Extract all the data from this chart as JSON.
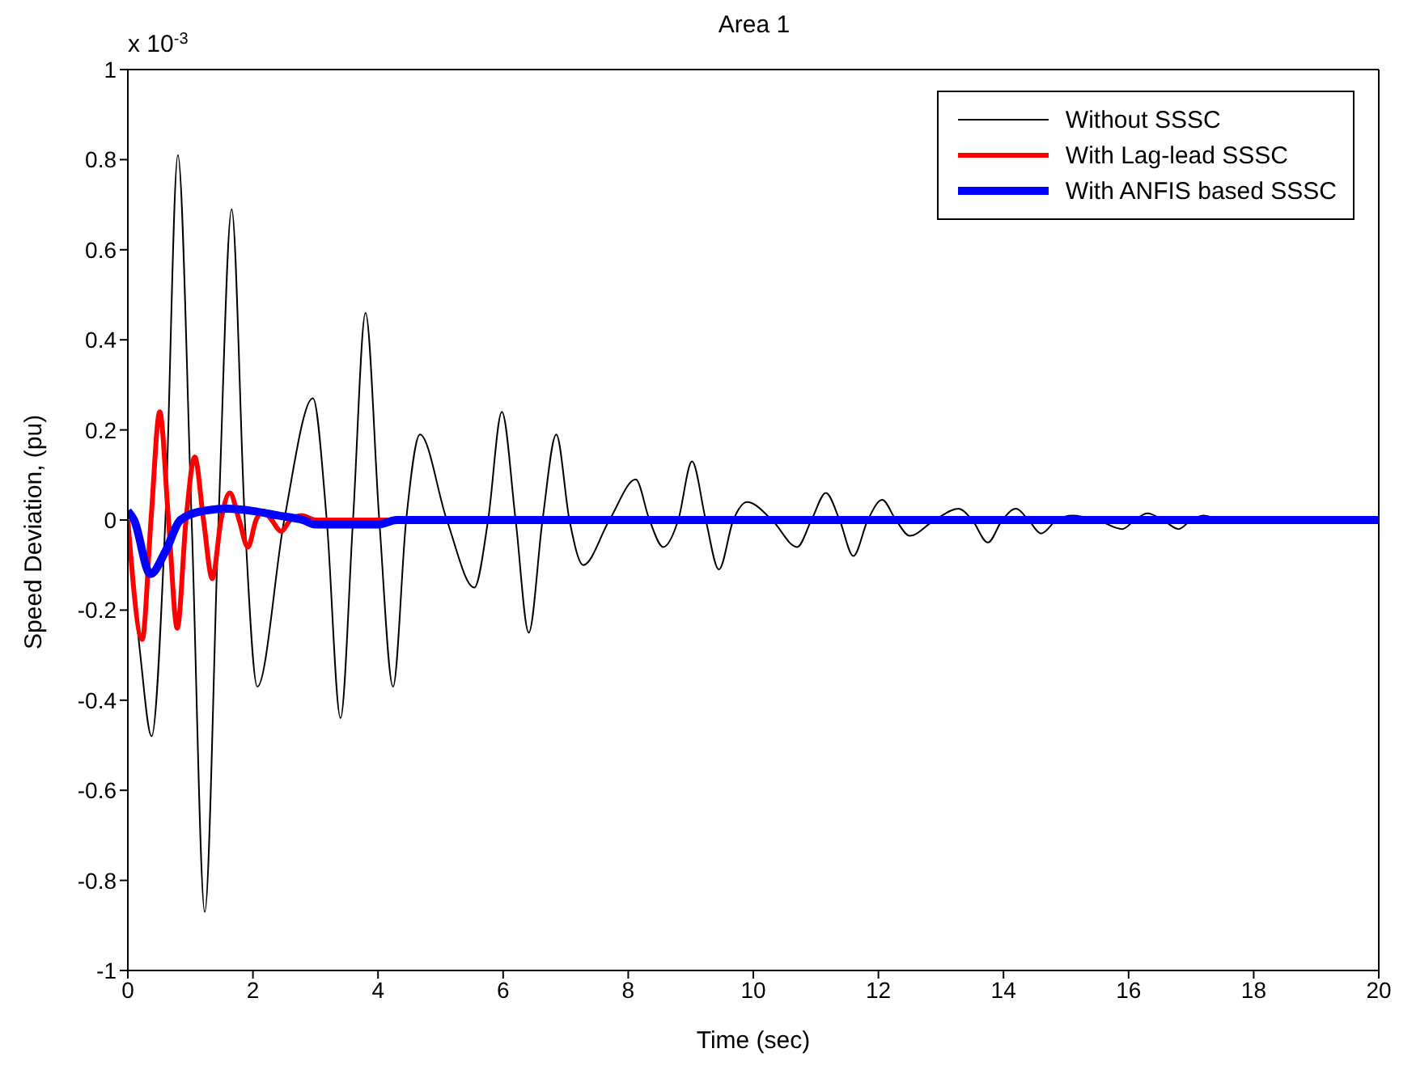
{
  "chart_data": {
    "type": "line",
    "title": "Area 1",
    "xlabel": "Time (sec)",
    "ylabel": "Speed Deviation, (pu)",
    "annotations": [
      "x 10$^{-3}$"
    ],
    "xlim": [
      0,
      20
    ],
    "xticks": [
      0,
      2,
      4,
      6,
      8,
      10,
      12,
      14,
      16,
      18,
      20
    ],
    "ylim": [
      -1,
      1
    ],
    "yticks": [
      -1,
      -0.8,
      -0.6,
      -0.4,
      -0.2,
      0,
      0.2,
      0.4,
      0.6,
      0.8,
      1
    ],
    "grid": false,
    "legend": "top right",
    "marker": "none",
    "line_style": "solid",
    "series": [
      {
        "name": "Without SSSC",
        "color": "#000000",
        "x": [
          0,
          0.2,
          0.38,
          0.6,
          0.8,
          1.02,
          1.23,
          1.45,
          1.66,
          1.87,
          2.07,
          2.5,
          2.96,
          3.18,
          3.4,
          3.6,
          3.8,
          4.02,
          4.24,
          4.45,
          4.67,
          5.1,
          5.54,
          5.76,
          5.98,
          6.2,
          6.41,
          6.63,
          6.85,
          7.06,
          7.28,
          7.7,
          8.12,
          8.34,
          8.56,
          8.8,
          9.02,
          9.24,
          9.45,
          9.68,
          9.9,
          10.3,
          10.7,
          10.93,
          11.16,
          11.38,
          11.6,
          11.83,
          12.06,
          12.28,
          12.5,
          12.9,
          13.28,
          13.5,
          13.75,
          13.98,
          14.2,
          14.4,
          14.6,
          14.85,
          15.1,
          15.5,
          15.9,
          16.1,
          16.3,
          16.55,
          16.8,
          17.0,
          17.2,
          17.5,
          20
        ],
        "values": [
          0,
          -0.3,
          -0.48,
          0,
          0.81,
          0,
          -0.87,
          0,
          0.69,
          0,
          -0.37,
          0,
          0.27,
          0,
          -0.44,
          0,
          0.46,
          0,
          -0.37,
          0,
          0.19,
          0,
          -0.15,
          0,
          0.24,
          0,
          -0.25,
          0,
          0.19,
          0,
          -0.1,
          0,
          0.09,
          0,
          -0.06,
          0,
          0.13,
          0,
          -0.11,
          0,
          0.04,
          0,
          -0.06,
          0,
          0.06,
          0,
          -0.08,
          0,
          0.045,
          0,
          -0.035,
          0,
          0.025,
          0,
          -0.05,
          0,
          0.025,
          0,
          -0.03,
          0,
          0.01,
          0,
          -0.02,
          0,
          0.015,
          0,
          -0.02,
          0,
          0.01,
          0,
          0
        ]
      },
      {
        "name": "With Lag-lead SSSC",
        "color": "#ff0000",
        "x": [
          0,
          0.23,
          0.37,
          0.51,
          0.65,
          0.79,
          0.93,
          1.07,
          1.21,
          1.35,
          1.49,
          1.63,
          1.78,
          1.92,
          2.05,
          2.17,
          2.3,
          2.45,
          2.6,
          2.78,
          3.0,
          20
        ],
        "values": [
          0,
          -0.265,
          0,
          0.24,
          0,
          -0.24,
          0,
          0.14,
          0,
          -0.13,
          0,
          0.06,
          0,
          -0.06,
          0,
          0.02,
          0,
          -0.025,
          0,
          0.01,
          0,
          0
        ]
      },
      {
        "name": "With ANFIS based SSSC",
        "color": "#0000ff",
        "x": [
          0,
          0.1,
          0.36,
          0.6,
          0.84,
          1.2,
          1.6,
          2.0,
          2.4,
          2.8,
          3.0,
          4.0,
          4.3,
          20
        ],
        "values": [
          0.02,
          0,
          -0.12,
          -0.07,
          0,
          0.02,
          0.025,
          0.02,
          0.01,
          0,
          -0.01,
          -0.01,
          0,
          0
        ]
      }
    ]
  }
}
